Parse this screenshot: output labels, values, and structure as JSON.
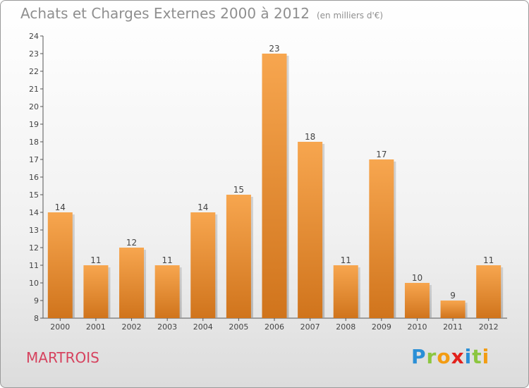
{
  "header": {
    "title": "Achats et Charges Externes 2000 à 2012",
    "unit": "(en milliers d'€)"
  },
  "footer": {
    "commune": "MARTROIS",
    "logo_letters": [
      {
        "char": "P",
        "color": "#2a8fd6"
      },
      {
        "char": "r",
        "color": "#8cc63f"
      },
      {
        "char": "o",
        "color": "#f39c12"
      },
      {
        "char": "x",
        "color": "#e2211c"
      },
      {
        "char": "i",
        "color": "#2a8fd6"
      },
      {
        "char": "t",
        "color": "#8cc63f"
      },
      {
        "char": "i",
        "color": "#f39c12"
      }
    ]
  },
  "chart_data": {
    "type": "bar",
    "title": "Achats et Charges Externes 2000 à 2012",
    "subtitle": "(en milliers d'€)",
    "categories": [
      "2000",
      "2001",
      "2002",
      "2003",
      "2004",
      "2005",
      "2006",
      "2007",
      "2008",
      "2009",
      "2010",
      "2011",
      "2012"
    ],
    "values": [
      14,
      11,
      12,
      11,
      14,
      15,
      23,
      18,
      11,
      17,
      10,
      9,
      11
    ],
    "ylim": [
      8,
      24
    ],
    "yticks": [
      8,
      9,
      10,
      11,
      12,
      13,
      14,
      15,
      16,
      17,
      18,
      19,
      20,
      21,
      22,
      23,
      24
    ],
    "grid": false,
    "bar_color_top": "#f7a64f",
    "bar_color_bottom": "#d0741c"
  }
}
